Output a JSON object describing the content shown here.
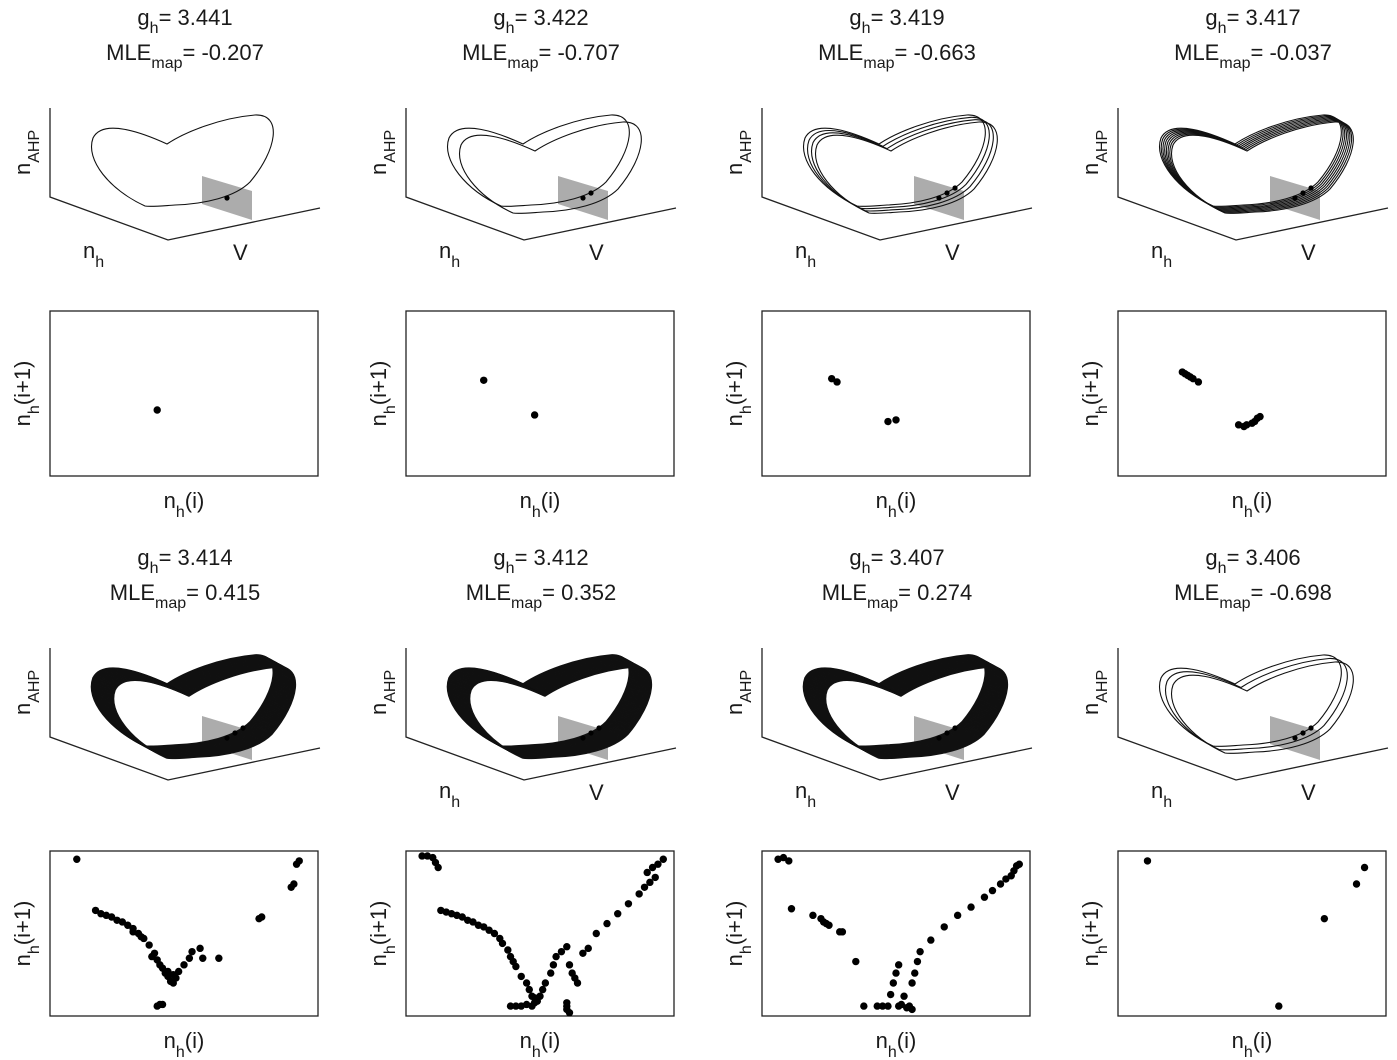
{
  "labels": {
    "g_base": "g",
    "g_sub": "h",
    "mle_base": "MLE",
    "mle_sub": "map",
    "eq": "= ",
    "n_base": "n",
    "ahp_sub": "AHP",
    "h_sub": "h",
    "v_label": "V",
    "next_suffix": "(i+1)",
    "cur_suffix": "(i)"
  },
  "chart_data": [
    {
      "type": "scatter",
      "g_h": "3.441",
      "mle_map": "-0.207",
      "show_3d_axis_labels": true,
      "xlabel": "n_h(i)",
      "ylabel": "n_h(i+1)",
      "attractor_loops": 1,
      "points": [
        [
          0.4,
          0.4
        ]
      ]
    },
    {
      "type": "scatter",
      "g_h": "3.422",
      "mle_map": "-0.707",
      "show_3d_axis_labels": true,
      "xlabel": "n_h(i)",
      "ylabel": "n_h(i+1)",
      "attractor_loops": 2,
      "points": [
        [
          0.29,
          0.58
        ],
        [
          0.48,
          0.37
        ]
      ]
    },
    {
      "type": "scatter",
      "g_h": "3.419",
      "mle_map": "-0.663",
      "show_3d_axis_labels": true,
      "xlabel": "n_h(i)",
      "ylabel": "n_h(i+1)",
      "attractor_loops": 4,
      "points": [
        [
          0.26,
          0.59
        ],
        [
          0.28,
          0.57
        ],
        [
          0.47,
          0.33
        ],
        [
          0.5,
          0.34
        ]
      ]
    },
    {
      "type": "scatter",
      "g_h": "3.417",
      "mle_map": "-0.037",
      "show_3d_axis_labels": true,
      "xlabel": "n_h(i)",
      "ylabel": "n_h(i+1)",
      "attractor_loops": 8,
      "points": [
        [
          0.24,
          0.63
        ],
        [
          0.25,
          0.62
        ],
        [
          0.26,
          0.61
        ],
        [
          0.27,
          0.6
        ],
        [
          0.28,
          0.59
        ],
        [
          0.3,
          0.57
        ],
        [
          0.45,
          0.31
        ],
        [
          0.47,
          0.3
        ],
        [
          0.48,
          0.31
        ],
        [
          0.5,
          0.32
        ],
        [
          0.51,
          0.33
        ],
        [
          0.52,
          0.35
        ],
        [
          0.53,
          0.36
        ]
      ]
    },
    {
      "type": "scatter",
      "g_h": "3.414",
      "mle_map": "0.415",
      "show_3d_axis_labels": false,
      "xlabel": "n_h(i)",
      "ylabel": "n_h(i+1)",
      "attractor_loops": 24,
      "points": [
        [
          0.1,
          0.95
        ],
        [
          0.17,
          0.64
        ],
        [
          0.19,
          0.62
        ],
        [
          0.21,
          0.61
        ],
        [
          0.23,
          0.6
        ],
        [
          0.25,
          0.58
        ],
        [
          0.27,
          0.57
        ],
        [
          0.29,
          0.55
        ],
        [
          0.31,
          0.53
        ],
        [
          0.33,
          0.5
        ],
        [
          0.35,
          0.47
        ],
        [
          0.37,
          0.43
        ],
        [
          0.39,
          0.38
        ],
        [
          0.4,
          0.34
        ],
        [
          0.42,
          0.29
        ],
        [
          0.43,
          0.26
        ],
        [
          0.44,
          0.24
        ],
        [
          0.45,
          0.21
        ],
        [
          0.46,
          0.2
        ],
        [
          0.47,
          0.23
        ],
        [
          0.48,
          0.27
        ],
        [
          0.5,
          0.31
        ],
        [
          0.52,
          0.35
        ],
        [
          0.53,
          0.39
        ],
        [
          0.56,
          0.41
        ],
        [
          0.38,
          0.36
        ],
        [
          0.41,
          0.31
        ],
        [
          0.44,
          0.27
        ],
        [
          0.46,
          0.25
        ],
        [
          0.31,
          0.51
        ],
        [
          0.34,
          0.48
        ],
        [
          0.4,
          0.06
        ],
        [
          0.41,
          0.07
        ],
        [
          0.42,
          0.07
        ],
        [
          0.57,
          0.35
        ],
        [
          0.63,
          0.35
        ],
        [
          0.78,
          0.59
        ],
        [
          0.79,
          0.6
        ],
        [
          0.9,
          0.78
        ],
        [
          0.91,
          0.8
        ],
        [
          0.92,
          0.92
        ],
        [
          0.93,
          0.94
        ]
      ]
    },
    {
      "type": "scatter",
      "g_h": "3.412",
      "mle_map": "0.352",
      "show_3d_axis_labels": true,
      "xlabel": "n_h(i)",
      "ylabel": "n_h(i+1)",
      "attractor_loops": 30,
      "points": [
        [
          0.06,
          0.97
        ],
        [
          0.08,
          0.97
        ],
        [
          0.1,
          0.96
        ],
        [
          0.11,
          0.93
        ],
        [
          0.12,
          0.9
        ],
        [
          0.13,
          0.64
        ],
        [
          0.15,
          0.63
        ],
        [
          0.17,
          0.62
        ],
        [
          0.19,
          0.61
        ],
        [
          0.21,
          0.6
        ],
        [
          0.23,
          0.58
        ],
        [
          0.25,
          0.57
        ],
        [
          0.27,
          0.55
        ],
        [
          0.29,
          0.54
        ],
        [
          0.31,
          0.52
        ],
        [
          0.33,
          0.5
        ],
        [
          0.35,
          0.47
        ],
        [
          0.36,
          0.44
        ],
        [
          0.38,
          0.4
        ],
        [
          0.39,
          0.36
        ],
        [
          0.4,
          0.33
        ],
        [
          0.41,
          0.3
        ],
        [
          0.43,
          0.24
        ],
        [
          0.45,
          0.2
        ],
        [
          0.46,
          0.16
        ],
        [
          0.47,
          0.12
        ],
        [
          0.48,
          0.08
        ],
        [
          0.39,
          0.06
        ],
        [
          0.41,
          0.06
        ],
        [
          0.43,
          0.06
        ],
        [
          0.45,
          0.07
        ],
        [
          0.47,
          0.06
        ],
        [
          0.48,
          0.11
        ],
        [
          0.49,
          0.09
        ],
        [
          0.5,
          0.12
        ],
        [
          0.51,
          0.16
        ],
        [
          0.52,
          0.2
        ],
        [
          0.54,
          0.26
        ],
        [
          0.55,
          0.31
        ],
        [
          0.56,
          0.36
        ],
        [
          0.58,
          0.39
        ],
        [
          0.6,
          0.42
        ],
        [
          0.61,
          0.31
        ],
        [
          0.62,
          0.26
        ],
        [
          0.63,
          0.23
        ],
        [
          0.64,
          0.2
        ],
        [
          0.66,
          0.38
        ],
        [
          0.68,
          0.41
        ],
        [
          0.71,
          0.5
        ],
        [
          0.75,
          0.56
        ],
        [
          0.79,
          0.62
        ],
        [
          0.83,
          0.68
        ],
        [
          0.87,
          0.74
        ],
        [
          0.89,
          0.78
        ],
        [
          0.91,
          0.81
        ],
        [
          0.93,
          0.84
        ],
        [
          0.9,
          0.87
        ],
        [
          0.92,
          0.9
        ],
        [
          0.94,
          0.92
        ],
        [
          0.96,
          0.95
        ],
        [
          0.6,
          0.04
        ],
        [
          0.61,
          0.02
        ],
        [
          0.6,
          0.06
        ],
        [
          0.6,
          0.08
        ]
      ]
    },
    {
      "type": "scatter",
      "g_h": "3.407",
      "mle_map": "0.274",
      "show_3d_axis_labels": true,
      "xlabel": "n_h(i)",
      "ylabel": "n_h(i+1)",
      "attractor_loops": 30,
      "points": [
        [
          0.06,
          0.95
        ],
        [
          0.08,
          0.96
        ],
        [
          0.1,
          0.94
        ],
        [
          0.11,
          0.65
        ],
        [
          0.19,
          0.61
        ],
        [
          0.22,
          0.59
        ],
        [
          0.23,
          0.57
        ],
        [
          0.24,
          0.56
        ],
        [
          0.25,
          0.55
        ],
        [
          0.29,
          0.51
        ],
        [
          0.3,
          0.51
        ],
        [
          0.35,
          0.33
        ],
        [
          0.38,
          0.06
        ],
        [
          0.43,
          0.06
        ],
        [
          0.45,
          0.06
        ],
        [
          0.47,
          0.06
        ],
        [
          0.48,
          0.13
        ],
        [
          0.49,
          0.2
        ],
        [
          0.5,
          0.26
        ],
        [
          0.51,
          0.31
        ],
        [
          0.51,
          0.06
        ],
        [
          0.52,
          0.07
        ],
        [
          0.53,
          0.12
        ],
        [
          0.54,
          0.05
        ],
        [
          0.55,
          0.06
        ],
        [
          0.56,
          0.04
        ],
        [
          0.56,
          0.2
        ],
        [
          0.57,
          0.26
        ],
        [
          0.58,
          0.33
        ],
        [
          0.59,
          0.39
        ],
        [
          0.63,
          0.46
        ],
        [
          0.68,
          0.54
        ],
        [
          0.73,
          0.61
        ],
        [
          0.78,
          0.66
        ],
        [
          0.83,
          0.72
        ],
        [
          0.86,
          0.76
        ],
        [
          0.89,
          0.8
        ],
        [
          0.91,
          0.83
        ],
        [
          0.93,
          0.85
        ],
        [
          0.94,
          0.88
        ],
        [
          0.95,
          0.91
        ],
        [
          0.96,
          0.92
        ]
      ]
    },
    {
      "type": "scatter",
      "g_h": "3.406",
      "mle_map": "-0.698",
      "show_3d_axis_labels": true,
      "xlabel": "n_h(i)",
      "ylabel": "n_h(i+1)",
      "attractor_loops": 3,
      "points": [
        [
          0.11,
          0.94
        ],
        [
          0.6,
          0.06
        ],
        [
          0.77,
          0.59
        ],
        [
          0.89,
          0.8
        ],
        [
          0.92,
          0.9
        ]
      ]
    }
  ]
}
